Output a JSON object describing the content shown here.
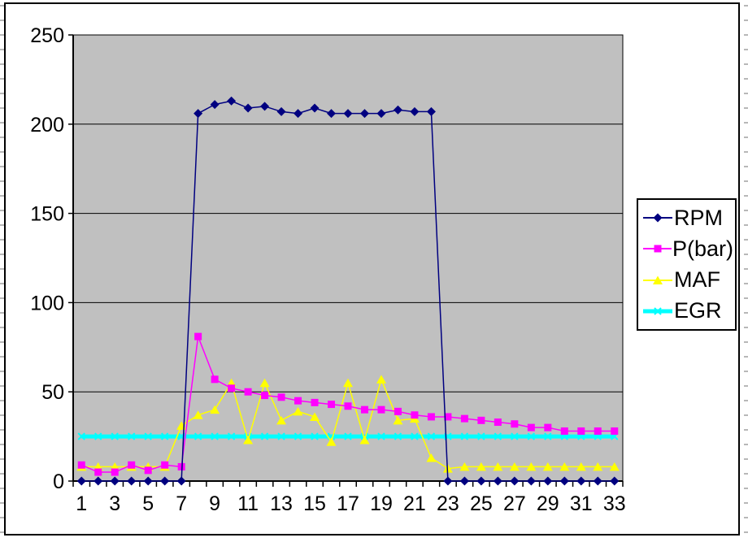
{
  "chart_data": {
    "type": "line",
    "title": "",
    "xlabel": "",
    "ylabel": "",
    "x": [
      1,
      2,
      3,
      4,
      5,
      6,
      7,
      8,
      9,
      10,
      11,
      12,
      13,
      14,
      15,
      16,
      17,
      18,
      19,
      20,
      21,
      22,
      23,
      24,
      25,
      26,
      27,
      28,
      29,
      30,
      31,
      32,
      33
    ],
    "x_tick_labels": [
      "1",
      "3",
      "5",
      "7",
      "9",
      "11",
      "13",
      "15",
      "17",
      "19",
      "21",
      "23",
      "25",
      "27",
      "29",
      "31",
      "33"
    ],
    "ylim": [
      0,
      250
    ],
    "y_ticks": [
      0,
      50,
      100,
      150,
      200,
      250
    ],
    "grid": true,
    "plot_bg": "#c0c0c0",
    "gridline_color": "#000000",
    "legend_position": "right",
    "series": [
      {
        "name": "RPM",
        "color": "#000080",
        "marker": "diamond",
        "line_width": 1.5,
        "values": [
          0,
          0,
          0,
          0,
          0,
          0,
          0,
          206,
          211,
          213,
          209,
          210,
          207,
          206,
          209,
          206,
          206,
          206,
          206,
          208,
          207,
          207,
          0,
          0,
          0,
          0,
          0,
          0,
          0,
          0,
          0,
          0,
          0
        ]
      },
      {
        "name": "P(bar)",
        "color": "#ff00ff",
        "marker": "square",
        "line_width": 1.5,
        "values": [
          9,
          5,
          5,
          9,
          6,
          9,
          8,
          81,
          57,
          52,
          50,
          48,
          47,
          45,
          44,
          43,
          42,
          40,
          40,
          39,
          37,
          36,
          36,
          35,
          34,
          33,
          32,
          30,
          30,
          28,
          28,
          28,
          28
        ]
      },
      {
        "name": "MAF",
        "color": "#ffff00",
        "marker": "triangle",
        "line_width": 1.5,
        "values": [
          8,
          8,
          8,
          8,
          8,
          8,
          31,
          37,
          40,
          55,
          23,
          55,
          34,
          39,
          36,
          22,
          55,
          23,
          57,
          34,
          35,
          13,
          7,
          8,
          8,
          8,
          8,
          8,
          8,
          8,
          8,
          8,
          8
        ]
      },
      {
        "name": "EGR",
        "color": "#00ffff",
        "marker": "x",
        "line_width": 5,
        "values": [
          25,
          25,
          25,
          25,
          25,
          25,
          25,
          25,
          25,
          25,
          25,
          25,
          25,
          25,
          25,
          25,
          25,
          25,
          25,
          25,
          25,
          25,
          25,
          25,
          25,
          25,
          25,
          25,
          25,
          25,
          25,
          25,
          25
        ]
      }
    ]
  }
}
